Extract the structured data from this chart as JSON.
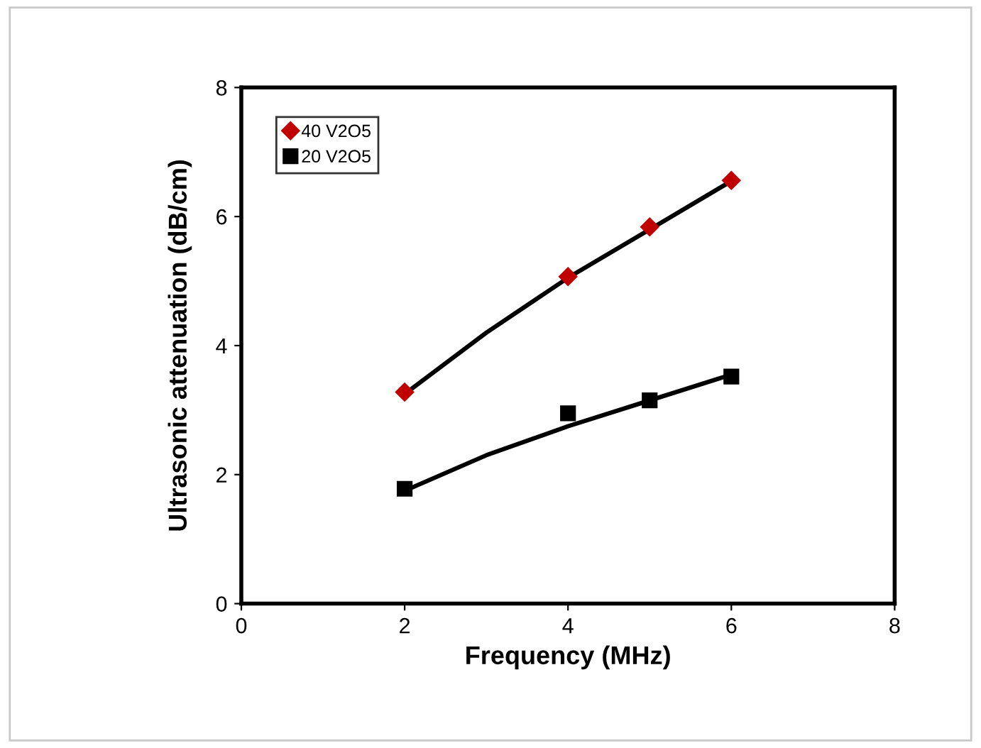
{
  "chart_data": {
    "type": "scatter",
    "xlabel": "Frequency (MHz)",
    "ylabel": "Ultrasonic attenuation (dB/cm)",
    "xlim": [
      0,
      8
    ],
    "ylim": [
      0,
      8
    ],
    "xticks": [
      0,
      2,
      4,
      6,
      8
    ],
    "yticks": [
      0,
      2,
      4,
      6,
      8
    ],
    "grid": false,
    "legend": "top left",
    "series": [
      {
        "name": "40 V2O5",
        "marker": "diamond",
        "color": "#c00000",
        "x": [
          2,
          4,
          5,
          6
        ],
        "values": [
          3.28,
          5.07,
          5.84,
          6.56
        ]
      },
      {
        "name": "20 V2O5",
        "marker": "square",
        "color": "#000000",
        "x": [
          2,
          4,
          5,
          6
        ],
        "values": [
          1.78,
          2.95,
          3.15,
          3.52
        ]
      },
      {
        "type": "line",
        "marker": "none",
        "line_style": "solid",
        "color": "#000000",
        "x": [
          2,
          3,
          4,
          5,
          6
        ],
        "values": [
          3.25,
          4.2,
          5.05,
          5.8,
          6.55
        ]
      },
      {
        "type": "line",
        "marker": "none",
        "line_style": "solid",
        "color": "#000000",
        "x": [
          2,
          3,
          4,
          5,
          6
        ],
        "values": [
          1.75,
          2.3,
          2.75,
          3.15,
          3.55
        ]
      }
    ]
  }
}
